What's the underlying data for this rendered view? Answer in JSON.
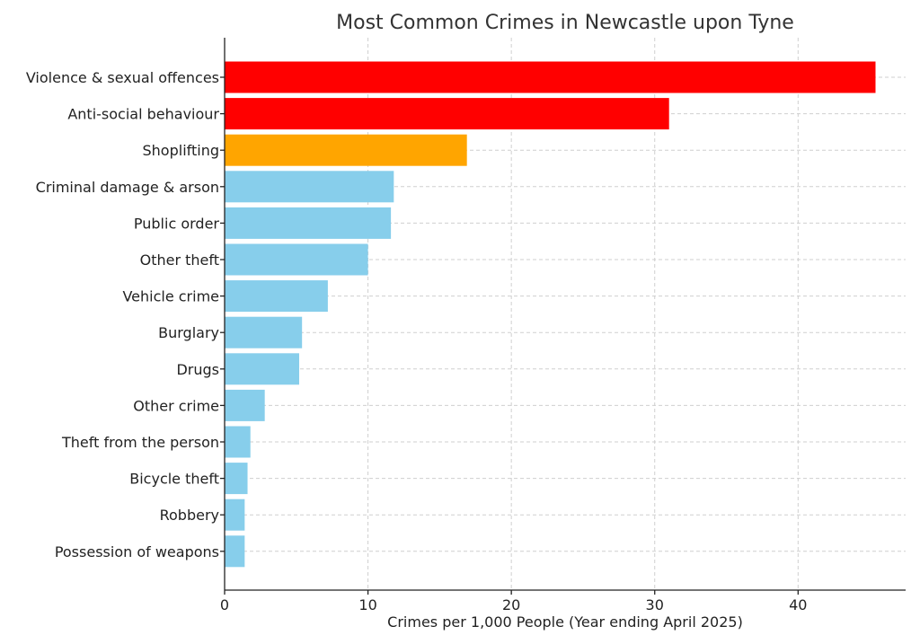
{
  "chart_data": {
    "type": "bar",
    "orientation": "horizontal",
    "title": "Most Common Crimes in Newcastle upon Tyne",
    "xlabel": "Crimes per 1,000 People (Year ending April 2025)",
    "ylabel": "",
    "xlim": [
      0,
      47.5
    ],
    "xticks": [
      0,
      10,
      20,
      30,
      40
    ],
    "grid": true,
    "categories": [
      "Violence & sexual offences",
      "Anti-social behaviour",
      "Shoplifting",
      "Criminal damage & arson",
      "Public order",
      "Other theft",
      "Vehicle crime",
      "Burglary",
      "Drugs",
      "Other crime",
      "Theft from the person",
      "Bicycle theft",
      "Robbery",
      "Possession of weapons"
    ],
    "values": [
      45.4,
      31.0,
      16.9,
      11.8,
      11.6,
      10.0,
      7.2,
      5.4,
      5.2,
      2.8,
      1.8,
      1.6,
      1.4,
      1.4
    ],
    "colors": [
      "#ff0000",
      "#ff0000",
      "#ffa500",
      "#87ceeb",
      "#87ceeb",
      "#87ceeb",
      "#87ceeb",
      "#87ceeb",
      "#87ceeb",
      "#87ceeb",
      "#87ceeb",
      "#87ceeb",
      "#87ceeb",
      "#87ceeb"
    ]
  }
}
